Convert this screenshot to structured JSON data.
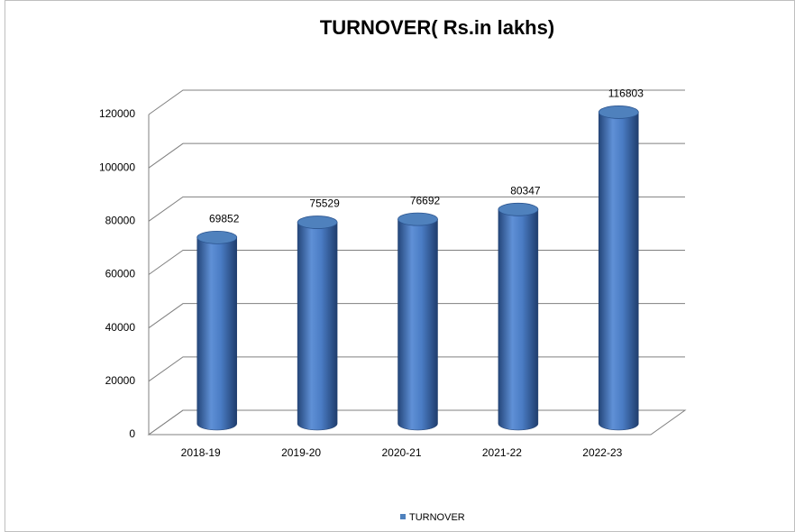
{
  "chart_data": {
    "type": "bar",
    "title": "TURNOVER( Rs.in lakhs)",
    "categories": [
      "2018-19",
      "2019-20",
      "2020-21",
      "2021-22",
      "2022-23"
    ],
    "series": [
      {
        "name": "TURNOVER",
        "color": "#4f81bd",
        "values": [
          69852,
          75529,
          76692,
          80347,
          116803
        ]
      }
    ],
    "ylim": [
      0,
      120000
    ],
    "yticks": [
      0,
      20000,
      40000,
      60000,
      80000,
      100000,
      120000
    ],
    "grid": true,
    "legend": "bottom"
  }
}
